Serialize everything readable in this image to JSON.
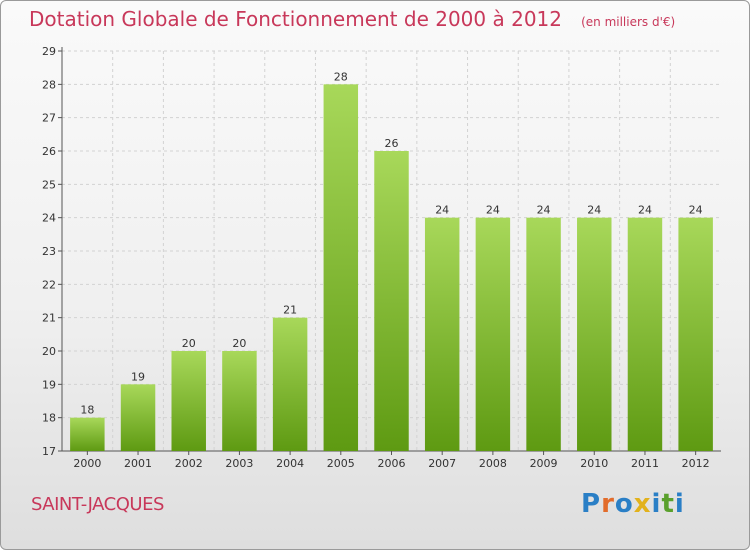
{
  "header": {
    "title": "Dotation Globale de Fonctionnement de 2000 à 2012",
    "subtitle": "(en milliers d'€)"
  },
  "footer": {
    "place": "SAINT-JACQUES",
    "logo": "Proxiti"
  },
  "colors": {
    "title": "#c8385a",
    "bar_light": "#a8d85a",
    "bar_dark": "#5e9a12",
    "logo_letters": [
      "#2a7fc6",
      "#e26c2b",
      "#2a7fc6",
      "#e2b21c",
      "#2a7fc6",
      "#5aa02c",
      "#2a7fc6"
    ]
  },
  "chart_data": {
    "type": "bar",
    "title": "Dotation Globale de Fonctionnement de 2000 à 2012",
    "subtitle": "(en milliers d'€)",
    "categories": [
      "2000",
      "2001",
      "2002",
      "2003",
      "2004",
      "2005",
      "2006",
      "2007",
      "2008",
      "2009",
      "2010",
      "2011",
      "2012"
    ],
    "values": [
      18,
      19,
      20,
      20,
      21,
      28,
      26,
      24,
      24,
      24,
      24,
      24,
      24
    ],
    "ylim": [
      17,
      29
    ],
    "yticks": [
      17,
      18,
      19,
      20,
      21,
      22,
      23,
      24,
      25,
      26,
      27,
      28,
      29
    ],
    "grid": true,
    "data_labels": true
  }
}
